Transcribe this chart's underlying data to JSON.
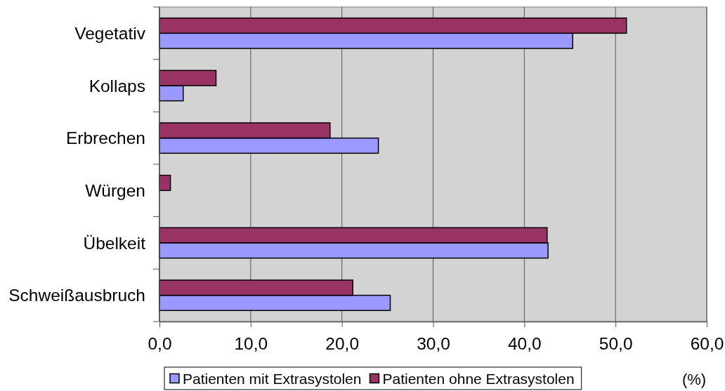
{
  "chart_data": {
    "type": "bar",
    "orientation": "horizontal",
    "xlabel": "(%)",
    "categories": [
      "Vegetativ",
      "Kollaps",
      "Erbrechen",
      "Würgen",
      "Übelkeit",
      "Schweißausbruch"
    ],
    "series": [
      {
        "name": "Patienten mit Extrasystolen",
        "color": "#9999ff",
        "values": [
          45.3,
          2.6,
          24.0,
          0,
          42.6,
          25.3
        ]
      },
      {
        "name": "Patienten ohne Extrasystolen",
        "color": "#993366",
        "values": [
          51.2,
          6.2,
          18.7,
          1.2,
          42.5,
          21.2
        ]
      }
    ],
    "xlim": [
      0,
      60
    ],
    "xticks": [
      {
        "value": 0,
        "label": "0,0"
      },
      {
        "value": 10,
        "label": "10,0"
      },
      {
        "value": 20,
        "label": "20,0"
      },
      {
        "value": 30,
        "label": "30,0"
      },
      {
        "value": 40,
        "label": "40,0"
      },
      {
        "value": 50,
        "label": "50,0"
      },
      {
        "value": 60,
        "label": "60,0"
      }
    ],
    "grid": "x",
    "legend": "bottom"
  }
}
